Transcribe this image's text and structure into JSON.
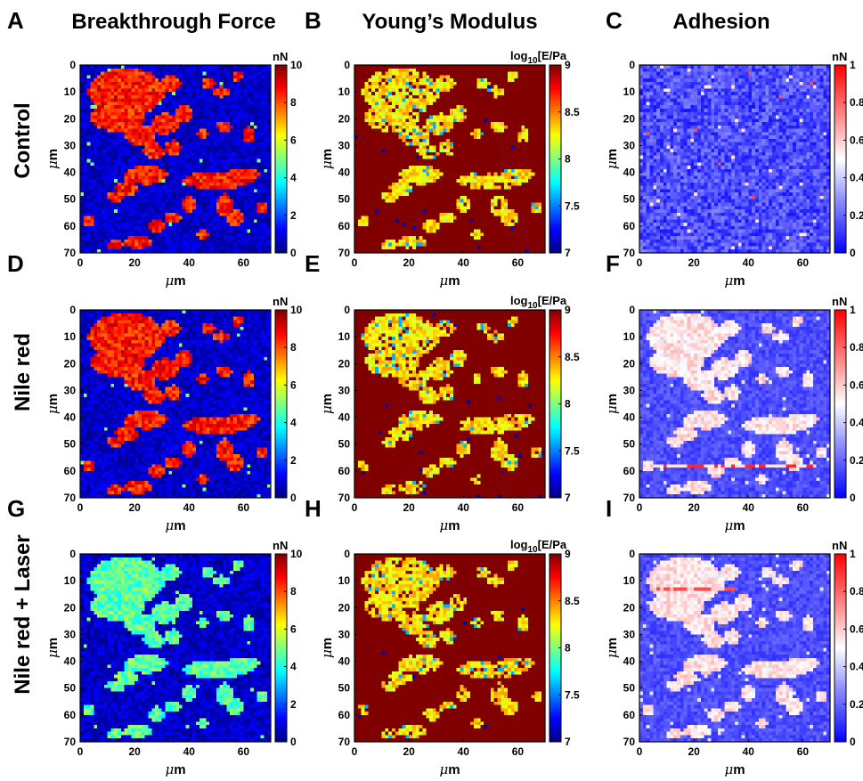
{
  "columns": [
    {
      "letter_row": [
        "A",
        "D",
        "G"
      ],
      "title": "Breakthrough Force"
    },
    {
      "letter_row": [
        "B",
        "E",
        "H"
      ],
      "title": "Young’s Modulus"
    },
    {
      "letter_row": [
        "C",
        "F",
        "I"
      ],
      "title": "Adhesion"
    }
  ],
  "rows": [
    "Control",
    "Nile red",
    "Nile red + Laser"
  ],
  "axis": {
    "unit_symbol": "μ",
    "unit_letter": "m"
  },
  "colorbars": {
    "force": {
      "unit": "nN",
      "ticks": [
        "10",
        "8",
        "6",
        "4",
        "2",
        "0"
      ],
      "vmin": 0,
      "vmax": 10,
      "colormap": "jet"
    },
    "modulus": {
      "unit_prefix": "log",
      "unit_sub": "10",
      "unit_suffix": "[E/Pa",
      "ticks": [
        "9",
        "8.5",
        "8",
        "7.5",
        "7"
      ],
      "vmin": 7,
      "vmax": 9,
      "colormap": "jet"
    },
    "adhesion_c": {
      "unit": "nN",
      "ticks": [
        "1",
        "0.8",
        "0.6",
        "0.4",
        "0.2",
        "0"
      ],
      "vmin": 0,
      "vmax": 1,
      "colormap": "bwr"
    },
    "adhesion": {
      "unit": "nN",
      "ticks": [
        "1",
        "0.8",
        "0.6",
        "0.4",
        "0.2",
        "0"
      ],
      "vmin": 0,
      "vmax": 1,
      "colormap": "bwr"
    }
  },
  "chart_data": [
    {
      "panel": "A",
      "type": "heatmap",
      "title": "Breakthrough Force",
      "row": "Control",
      "xlabel": "μm",
      "ylabel": "μm",
      "xlim": [
        0,
        70
      ],
      "ylim": [
        0,
        70
      ],
      "xticks": [
        "0",
        "20",
        "40",
        "60"
      ],
      "yticks": [
        "0",
        "10",
        "20",
        "30",
        "40",
        "50",
        "60",
        "70"
      ],
      "colorbar_unit": "nN",
      "clim": [
        0,
        10
      ],
      "colormap": "jet",
      "pattern": "island",
      "high_value": 8.5,
      "low_value": 0.7
    },
    {
      "panel": "B",
      "type": "heatmap",
      "title": "Young’s Modulus",
      "row": "Control",
      "xlabel": "μm",
      "ylabel": "μm",
      "xlim": [
        0,
        70
      ],
      "ylim": [
        0,
        70
      ],
      "xticks": [
        "0",
        "20",
        "40",
        "60"
      ],
      "yticks": [
        "0",
        "10",
        "20",
        "30",
        "40",
        "50",
        "60",
        "70"
      ],
      "colorbar_unit": "log10[E/Pa",
      "clim": [
        7,
        9
      ],
      "colormap": "jet",
      "pattern": "island",
      "high_value": 8.3,
      "low_value": 9.0
    },
    {
      "panel": "C",
      "type": "heatmap",
      "title": "Adhesion",
      "row": "Control",
      "xlabel": "μm",
      "ylabel": "μm",
      "xlim": [
        0,
        70
      ],
      "ylim": [
        0,
        70
      ],
      "xticks": [
        "0",
        "20",
        "40",
        "60"
      ],
      "yticks": [
        "0",
        "10",
        "20",
        "30",
        "40",
        "50",
        "60",
        "70"
      ],
      "colorbar_unit": "nN",
      "clim": [
        0,
        1
      ],
      "colormap": "bwr",
      "pattern": "uniform",
      "high_value": 0.15,
      "low_value": 0.15
    },
    {
      "panel": "D",
      "type": "heatmap",
      "row": "Nile red",
      "xlabel": "μm",
      "ylabel": "μm",
      "xlim": [
        0,
        70
      ],
      "ylim": [
        0,
        70
      ],
      "xticks": [
        "0",
        "20",
        "40",
        "60"
      ],
      "yticks": [
        "0",
        "10",
        "20",
        "30",
        "40",
        "50",
        "60",
        "70"
      ],
      "colorbar_unit": "nN",
      "clim": [
        0,
        10
      ],
      "colormap": "jet",
      "pattern": "island",
      "high_value": 8.5,
      "low_value": 0.7
    },
    {
      "panel": "E",
      "type": "heatmap",
      "row": "Nile red",
      "xlabel": "μm",
      "ylabel": "μm",
      "xlim": [
        0,
        70
      ],
      "ylim": [
        0,
        70
      ],
      "xticks": [
        "0",
        "20",
        "40",
        "60"
      ],
      "yticks": [
        "0",
        "10",
        "20",
        "30",
        "40",
        "50",
        "60",
        "70"
      ],
      "colorbar_unit": "log10[E/Pa",
      "clim": [
        7,
        9
      ],
      "colormap": "jet",
      "pattern": "island",
      "high_value": 8.3,
      "low_value": 9.0
    },
    {
      "panel": "F",
      "type": "heatmap",
      "row": "Nile red",
      "xlabel": "μm",
      "ylabel": "μm",
      "xlim": [
        0,
        70
      ],
      "ylim": [
        0,
        70
      ],
      "xticks": [
        "0",
        "20",
        "40",
        "60"
      ],
      "yticks": [
        "0",
        "10",
        "20",
        "30",
        "40",
        "50",
        "60",
        "70"
      ],
      "colorbar_unit": "nN",
      "clim": [
        0,
        1
      ],
      "colormap": "bwr",
      "pattern": "island",
      "high_value": 0.55,
      "low_value": 0.15,
      "stripe_y": 58
    },
    {
      "panel": "G",
      "type": "heatmap",
      "row": "Nile red + Laser",
      "xlabel": "μm",
      "ylabel": "μm",
      "xlim": [
        0,
        70
      ],
      "ylim": [
        0,
        70
      ],
      "xticks": [
        "0",
        "20",
        "40",
        "60"
      ],
      "yticks": [
        "0",
        "10",
        "20",
        "30",
        "40",
        "50",
        "60",
        "70"
      ],
      "colorbar_unit": "nN",
      "clim": [
        0,
        10
      ],
      "colormap": "jet",
      "pattern": "island",
      "high_value": 4.6,
      "low_value": 0.7
    },
    {
      "panel": "H",
      "type": "heatmap",
      "row": "Nile red + Laser",
      "xlabel": "μm",
      "ylabel": "μm",
      "xlim": [
        0,
        70
      ],
      "ylim": [
        0,
        70
      ],
      "xticks": [
        "0",
        "20",
        "40",
        "60"
      ],
      "yticks": [
        "0",
        "10",
        "20",
        "30",
        "40",
        "50",
        "60",
        "70"
      ],
      "colorbar_unit": "log10[E/Pa",
      "clim": [
        7,
        9
      ],
      "colormap": "jet",
      "pattern": "island",
      "high_value": 8.3,
      "low_value": 9.0
    },
    {
      "panel": "I",
      "type": "heatmap",
      "row": "Nile red + Laser",
      "xlabel": "μm",
      "ylabel": "μm",
      "xlim": [
        0,
        70
      ],
      "ylim": [
        0,
        70
      ],
      "xticks": [
        "0",
        "20",
        "40",
        "60"
      ],
      "yticks": [
        "0",
        "10",
        "20",
        "30",
        "40",
        "50",
        "60",
        "70"
      ],
      "colorbar_unit": "nN",
      "clim": [
        0,
        1
      ],
      "colormap": "bwr",
      "pattern": "island",
      "high_value": 0.55,
      "low_value": 0.15,
      "stripe_y": 13
    }
  ]
}
